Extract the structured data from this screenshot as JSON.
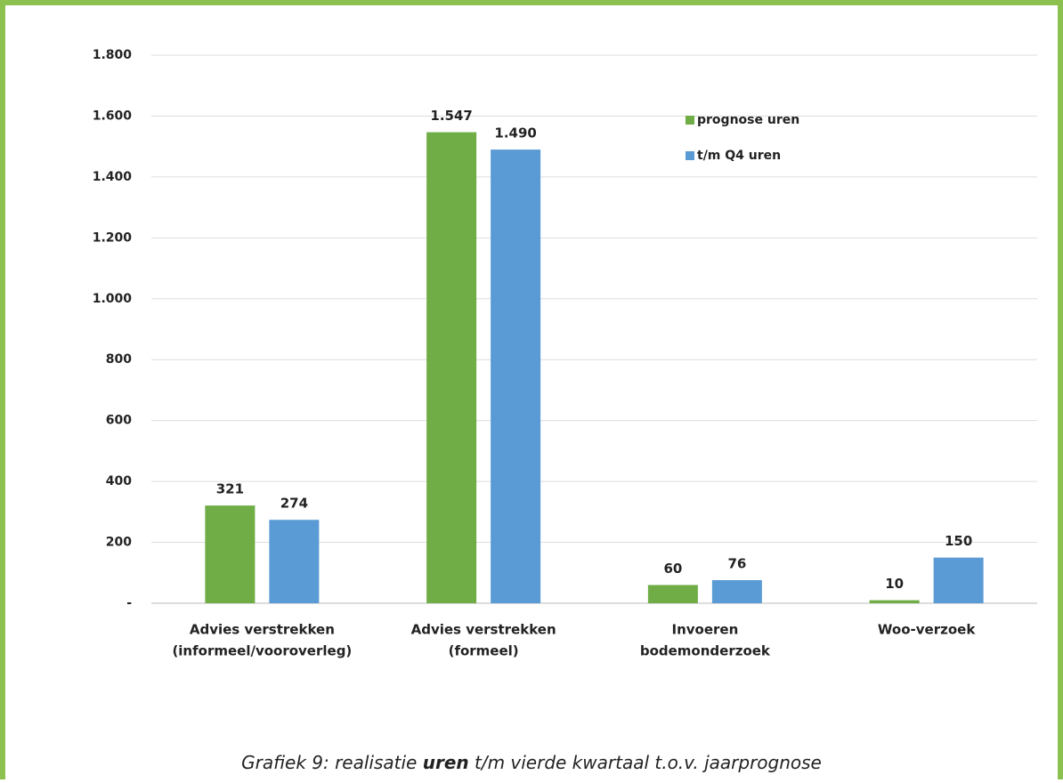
{
  "chart_data": {
    "type": "bar",
    "categories": [
      [
        "Advies verstrekken",
        "(informeel/vooroverleg)"
      ],
      [
        "Advies verstrekken",
        "(formeel)"
      ],
      [
        "Invoeren",
        "bodemonderzoek"
      ],
      [
        "Woo-verzoek"
      ]
    ],
    "series": [
      {
        "name": "prognose uren",
        "color": "#70ad47",
        "values": [
          321,
          1547,
          60,
          10
        ],
        "value_labels": [
          "321",
          "1.547",
          "60",
          "10"
        ]
      },
      {
        "name": "t/m Q4 uren",
        "color": "#5b9bd5",
        "values": [
          274,
          1490,
          76,
          150
        ],
        "value_labels": [
          "274",
          "1.490",
          "76",
          "150"
        ]
      }
    ],
    "ylim": [
      0,
      1800
    ],
    "yticks": [
      {
        "value": 0,
        "label": "-"
      },
      200,
      400,
      600,
      800,
      {
        "value": 1000,
        "label": "1.000"
      },
      {
        "value": 1200,
        "label": "1.200"
      },
      {
        "value": 1400,
        "label": "1.400"
      },
      {
        "value": 1600,
        "label": "1.600"
      },
      {
        "value": 1800,
        "label": "1.800"
      }
    ],
    "grid": true,
    "legend": "upper right",
    "caption": [
      "Grafiek 9: realisatie ",
      "uren",
      " t/m vierde kwartaal t.o.v. jaarprognose"
    ]
  }
}
